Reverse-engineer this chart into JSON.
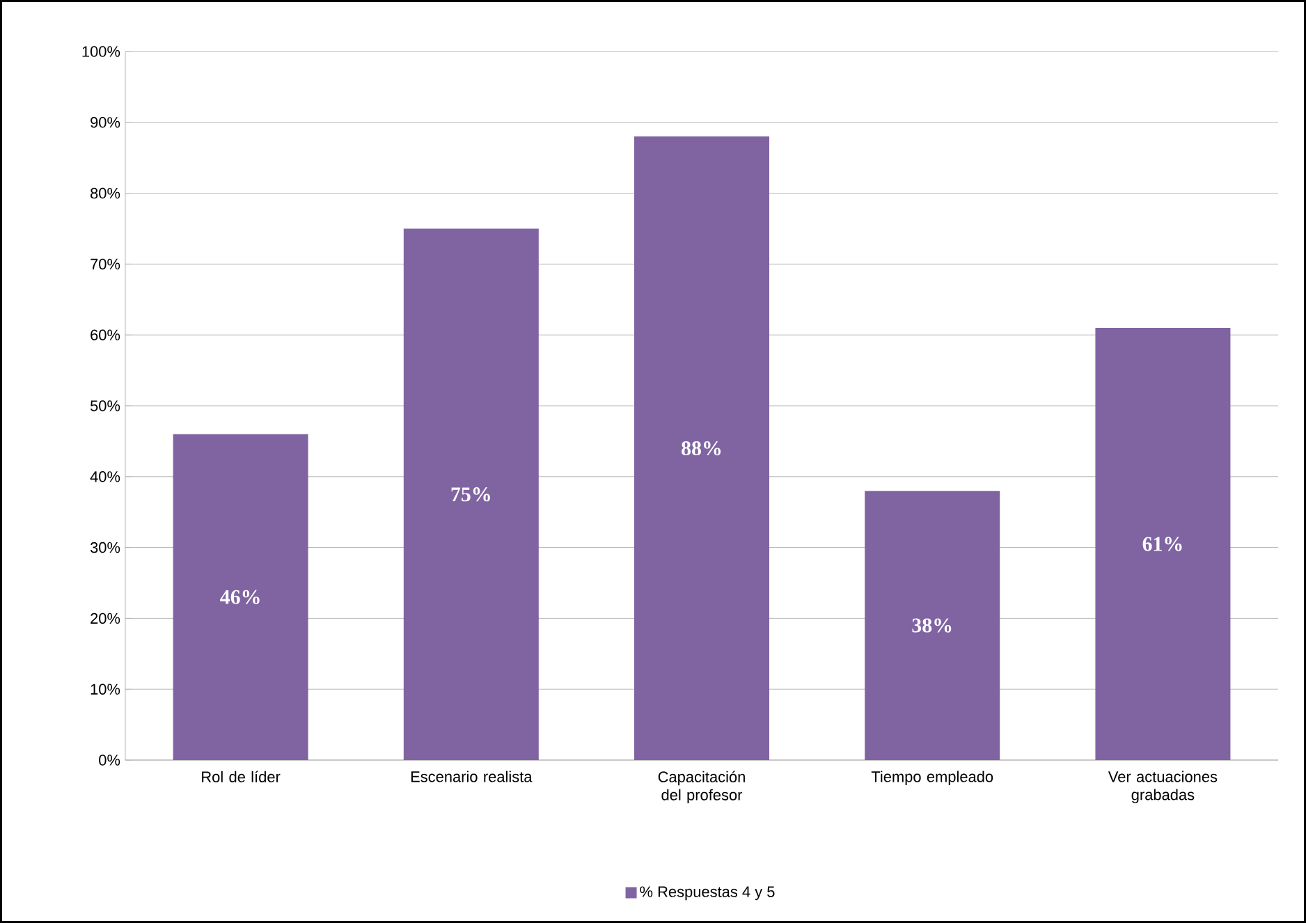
{
  "chart_data": {
    "type": "bar",
    "categories": [
      "Rol de líder",
      "Escenario realista",
      "Capacitación del profesor",
      "Tiempo empleado",
      "Ver actuaciones grabadas"
    ],
    "series": [
      {
        "name": "% Respuestas 4 y 5",
        "color": "#8064a2",
        "values": [
          46,
          75,
          88,
          38,
          61
        ],
        "value_labels": [
          "46%",
          "75%",
          "88%",
          "38%",
          "61%"
        ]
      }
    ],
    "ylim": [
      0,
      100
    ],
    "yticks": [
      {
        "value": 0,
        "label": "0%"
      },
      {
        "value": 10,
        "label": "10%"
      },
      {
        "value": 20,
        "label": "20%"
      },
      {
        "value": 30,
        "label": "30%"
      },
      {
        "value": 40,
        "label": "40%"
      },
      {
        "value": 50,
        "label": "50%"
      },
      {
        "value": 60,
        "label": "60%"
      },
      {
        "value": 70,
        "label": "70%"
      },
      {
        "value": 80,
        "label": "80%"
      },
      {
        "value": 90,
        "label": "90%"
      },
      {
        "value": 100,
        "label": "100%"
      }
    ],
    "grid": "y",
    "legend": "bottom"
  }
}
